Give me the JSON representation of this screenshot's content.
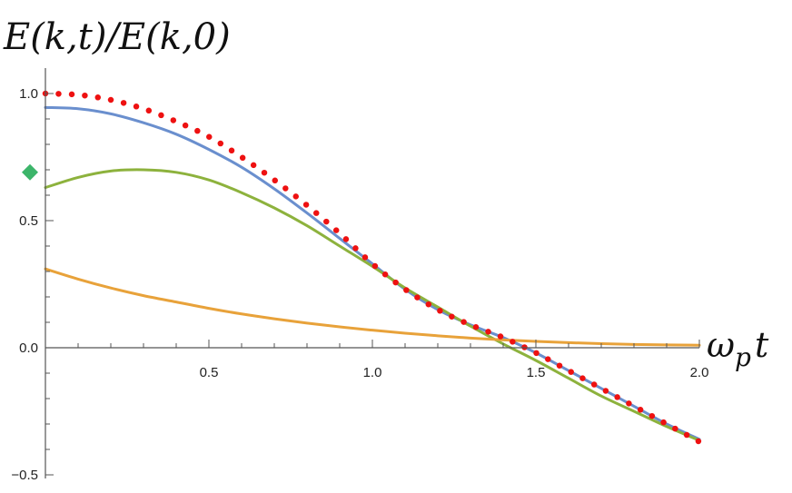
{
  "chart_data": {
    "type": "line",
    "ylabel": "E(k,t)/E(k,0)",
    "xlabel": "ω_p t",
    "xlabel_parts": {
      "main": "ω",
      "sub": "p",
      "tail": "t"
    },
    "xlim": [
      0,
      2.0
    ],
    "ylim": [
      -0.5,
      1.1
    ],
    "grid": false,
    "legend": "none",
    "x_ticks": [
      {
        "value": 0.5,
        "label": "0.5"
      },
      {
        "value": 1.0,
        "label": "1.0"
      },
      {
        "value": 1.5,
        "label": "1.5"
      },
      {
        "value": 2.0,
        "label": "2.0"
      }
    ],
    "y_ticks": [
      {
        "value": -0.5,
        "label": "−0.5"
      },
      {
        "value": 0.0,
        "label": "0.0"
      },
      {
        "value": 0.5,
        "label": "0.5"
      },
      {
        "value": 1.0,
        "label": "1.0"
      }
    ],
    "series": [
      {
        "style": "solid",
        "color": "#6a8fce",
        "x": [
          0,
          0.1,
          0.2,
          0.3,
          0.4,
          0.5,
          0.6,
          0.7,
          0.8,
          0.9,
          1.0,
          1.1,
          1.2,
          1.3,
          1.4,
          1.5,
          1.6,
          1.7,
          1.8,
          1.9,
          2.0
        ],
        "y": [
          0.945,
          0.94,
          0.92,
          0.885,
          0.84,
          0.78,
          0.71,
          0.625,
          0.53,
          0.43,
          0.33,
          0.23,
          0.15,
          0.09,
          0.04,
          -0.02,
          -0.09,
          -0.16,
          -0.23,
          -0.3,
          -0.36
        ]
      },
      {
        "style": "solid",
        "color": "#8db23d",
        "x": [
          0,
          0.1,
          0.2,
          0.3,
          0.4,
          0.5,
          0.6,
          0.7,
          0.8,
          0.9,
          1.0,
          1.1,
          1.2,
          1.3,
          1.4,
          1.5,
          1.6,
          1.7,
          1.8,
          1.9,
          2.0
        ],
        "y": [
          0.63,
          0.67,
          0.695,
          0.7,
          0.69,
          0.66,
          0.61,
          0.55,
          0.48,
          0.4,
          0.32,
          0.235,
          0.16,
          0.085,
          0.015,
          -0.05,
          -0.12,
          -0.19,
          -0.25,
          -0.31,
          -0.365
        ]
      },
      {
        "style": "solid",
        "color": "#e8a23a",
        "x": [
          0,
          0.1,
          0.2,
          0.3,
          0.4,
          0.5,
          0.6,
          0.7,
          0.8,
          0.9,
          1.0,
          1.1,
          1.2,
          1.3,
          1.4,
          1.5,
          1.6,
          1.7,
          1.8,
          1.9,
          2.0
        ],
        "y": [
          0.31,
          0.27,
          0.235,
          0.205,
          0.18,
          0.155,
          0.133,
          0.114,
          0.097,
          0.082,
          0.069,
          0.057,
          0.047,
          0.038,
          0.031,
          0.025,
          0.02,
          0.016,
          0.013,
          0.011,
          0.01
        ]
      },
      {
        "style": "dotted",
        "color": "#ee1111",
        "x": [
          0,
          0.1,
          0.2,
          0.3,
          0.4,
          0.5,
          0.6,
          0.7,
          0.8,
          0.9,
          1.0,
          1.1,
          1.2,
          1.3,
          1.4,
          1.5,
          1.6,
          1.7,
          1.8,
          1.9,
          2.0
        ],
        "y": [
          1.0,
          0.995,
          0.975,
          0.94,
          0.89,
          0.83,
          0.75,
          0.66,
          0.56,
          0.45,
          0.33,
          0.23,
          0.15,
          0.09,
          0.04,
          -0.02,
          -0.09,
          -0.16,
          -0.23,
          -0.3,
          -0.37
        ]
      }
    ],
    "markers": [
      {
        "shape": "diamond",
        "color": "#3cb56a",
        "x": 0.0,
        "y": 0.69
      }
    ]
  }
}
